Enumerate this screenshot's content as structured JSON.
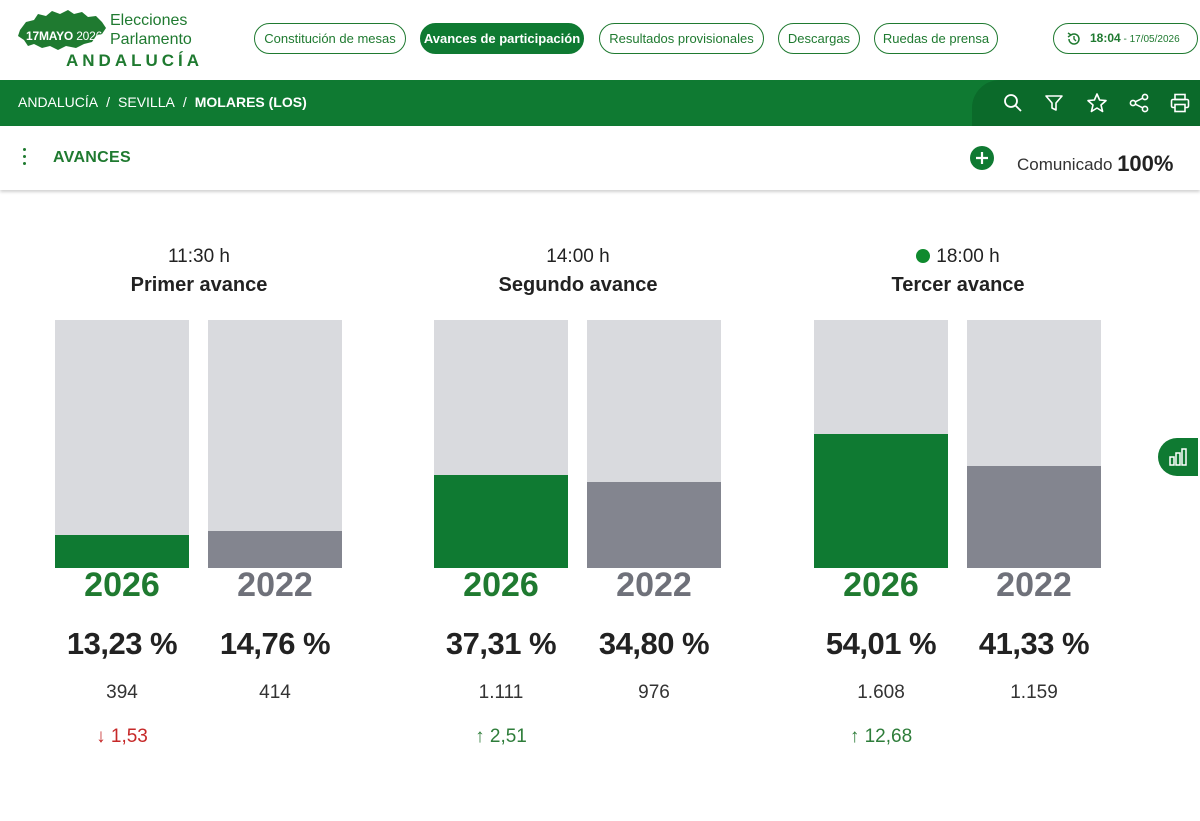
{
  "header": {
    "logo": {
      "date_day_month": "17MAYO",
      "date_year": "2026",
      "line1": "Elecciones",
      "line2": "Parlamento",
      "line3": "ANDALUCÍA"
    },
    "nav": [
      {
        "label": "Constitución de mesas",
        "active": false
      },
      {
        "label": "Avances de participación",
        "active": true
      },
      {
        "label": "Resultados provisionales",
        "active": false
      },
      {
        "label": "Descargas",
        "active": false
      },
      {
        "label": "Ruedas de prensa",
        "active": false
      }
    ],
    "clock": {
      "time": "18:04",
      "date": " - 17/05/2026"
    }
  },
  "breadcrumb": {
    "items": [
      "ANDALUCÍA",
      "SEVILLA"
    ],
    "separator": "/",
    "current": "MOLARES (LOS)"
  },
  "toolbar": {
    "icons": [
      "search-icon",
      "filter-icon",
      "star-icon",
      "share-icon",
      "print-icon"
    ]
  },
  "section": {
    "title": "AVANCES",
    "communicated_label": "Comunicado",
    "communicated_value": "100%"
  },
  "colors": {
    "brand_green": "#0f7a32",
    "bar_bg": "#d9dade",
    "bar_2022": "#83858f",
    "down": "#c62828",
    "up": "#2e7d3a"
  },
  "panels": [
    {
      "time": "11:30 h",
      "title": "Primer avance",
      "live": false,
      "y2026": {
        "year": "2026",
        "pct_value": 13.23,
        "pct": "13,23 %",
        "count": "394"
      },
      "y2022": {
        "year": "2022",
        "pct_value": 14.76,
        "pct": "14,76 %",
        "count": "414"
      },
      "diff": {
        "dir": "down",
        "arrow": "↓",
        "value": "1,53"
      }
    },
    {
      "time": "14:00 h",
      "title": "Segundo avance",
      "live": false,
      "y2026": {
        "year": "2026",
        "pct_value": 37.31,
        "pct": "37,31 %",
        "count": "1.111"
      },
      "y2022": {
        "year": "2022",
        "pct_value": 34.8,
        "pct": "34,80 %",
        "count": "976"
      },
      "diff": {
        "dir": "up",
        "arrow": "↑",
        "value": "2,51"
      }
    },
    {
      "time": "18:00 h",
      "title": "Tercer avance",
      "live": true,
      "y2026": {
        "year": "2026",
        "pct_value": 54.01,
        "pct": "54,01 %",
        "count": "1.608"
      },
      "y2022": {
        "year": "2022",
        "pct_value": 41.33,
        "pct": "41,33 %",
        "count": "1.159"
      },
      "diff": {
        "dir": "up",
        "arrow": "↑",
        "value": "12,68"
      }
    }
  ],
  "side_button": {
    "icon": "bar-chart-icon"
  }
}
